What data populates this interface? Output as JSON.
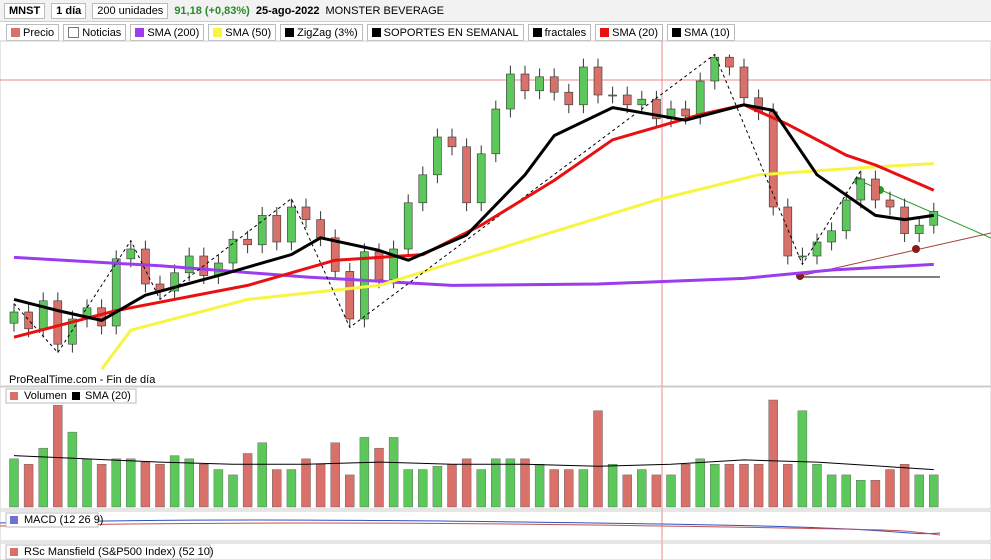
{
  "toolbar": {
    "symbol": "MNST",
    "period": "1 día",
    "units": "200 unidades",
    "price": "91,18 (+0,83%)",
    "date": "25-ago-2022",
    "name": "MONSTER BEVERAGE"
  },
  "chart_data": [
    {
      "type": "candlestick",
      "price_label": "Precio",
      "news_label": "Noticias",
      "footer": "ProRealTime.com - Fin de día",
      "ylim": [
        79.5,
        102.5
      ],
      "up_color": "#5cc85c",
      "down_color": "#d9706a",
      "open": [
        83.2,
        84.0,
        82.8,
        84.8,
        81.7,
        83.5,
        84.3,
        83.0,
        87.8,
        88.5,
        86.0,
        85.5,
        86.8,
        88.0,
        86.6,
        87.5,
        89.2,
        88.8,
        90.9,
        89.0,
        91.5,
        90.6,
        89.3,
        86.9,
        83.5,
        88.3,
        86.3,
        88.5,
        91.8,
        93.8,
        96.5,
        95.8,
        91.8,
        95.3,
        98.5,
        101.0,
        99.8,
        100.8,
        99.7,
        98.8,
        101.5,
        99.5,
        99.5,
        98.8,
        99.2,
        97.8,
        98.5,
        98.0,
        100.5,
        102.2,
        101.5,
        99.3,
        98.3,
        91.5,
        88.0,
        88.0,
        89.0,
        89.8,
        92.0,
        93.5,
        92.0,
        91.5,
        89.6,
        90.2
      ],
      "high": [
        84.6,
        84.6,
        85.4,
        85.4,
        84.1,
        84.9,
        84.9,
        88.4,
        89.1,
        89.1,
        86.6,
        87.4,
        88.6,
        88.6,
        88.1,
        89.8,
        89.8,
        91.5,
        91.5,
        92.1,
        92.1,
        91.2,
        89.9,
        87.5,
        88.9,
        88.9,
        89.1,
        92.4,
        94.4,
        97.1,
        97.1,
        96.4,
        95.9,
        99.1,
        101.6,
        101.6,
        101.4,
        101.4,
        100.3,
        102.1,
        102.1,
        100.1,
        100.1,
        99.8,
        99.8,
        99.1,
        99.1,
        101.1,
        102.4,
        102.4,
        102.1,
        99.9,
        98.9,
        92.1,
        88.6,
        89.6,
        90.4,
        92.6,
        94.1,
        94.1,
        92.6,
        92.1,
        90.8,
        91.8
      ],
      "low": [
        82.6,
        82.2,
        82.2,
        81.1,
        81.1,
        82.9,
        82.4,
        82.4,
        87.2,
        85.4,
        84.9,
        84.9,
        86.2,
        86.0,
        86.0,
        86.9,
        88.2,
        88.2,
        88.4,
        88.4,
        90.0,
        88.7,
        86.3,
        82.9,
        82.9,
        85.7,
        85.7,
        87.9,
        91.2,
        93.2,
        95.2,
        91.2,
        91.2,
        94.7,
        97.9,
        99.2,
        99.2,
        99.1,
        98.2,
        98.2,
        98.9,
        98.9,
        98.2,
        98.2,
        97.2,
        97.2,
        97.4,
        97.4,
        99.9,
        100.9,
        98.7,
        97.7,
        90.9,
        87.4,
        87.4,
        87.4,
        88.4,
        89.2,
        91.4,
        91.4,
        90.9,
        89.0,
        89.0,
        89.6
      ],
      "close": [
        84.0,
        82.8,
        84.8,
        81.7,
        83.5,
        84.3,
        83.0,
        87.8,
        88.5,
        86.0,
        85.5,
        86.8,
        88.0,
        86.6,
        87.5,
        89.2,
        88.8,
        90.9,
        89.0,
        91.5,
        90.6,
        89.3,
        86.9,
        83.5,
        88.3,
        86.3,
        88.5,
        91.8,
        93.8,
        96.5,
        95.8,
        91.8,
        95.3,
        98.5,
        101.0,
        99.8,
        100.8,
        99.7,
        98.8,
        101.5,
        99.5,
        99.5,
        98.8,
        99.2,
        97.8,
        98.5,
        98.0,
        100.5,
        102.2,
        101.5,
        99.3,
        98.3,
        91.5,
        88.0,
        88.0,
        89.0,
        89.8,
        92.0,
        93.5,
        92.0,
        91.5,
        89.6,
        90.2,
        91.18
      ],
      "series": [
        {
          "name": "SMA (200)",
          "color": "#9b3cf0",
          "width": 3,
          "x": [
            0,
            10,
            20,
            30,
            40,
            50,
            56,
            63
          ],
          "values": [
            87.9,
            87.3,
            86.5,
            85.9,
            86.0,
            86.4,
            87.0,
            87.4
          ]
        },
        {
          "name": "SMA (50)",
          "color": "#f5f542",
          "width": 3,
          "x": [
            6,
            8,
            16,
            25,
            35,
            44,
            51,
            58,
            63
          ],
          "values": [
            79.9,
            82.7,
            84.9,
            85.9,
            89.1,
            92.0,
            93.8,
            94.3,
            94.6
          ]
        },
        {
          "name": "ZigZag (3%)",
          "color": "#000000",
          "width": 1,
          "dash": true,
          "x": [
            0,
            3,
            8,
            10,
            19,
            23,
            48,
            54,
            58
          ],
          "values": [
            84.6,
            81.1,
            89.1,
            84.9,
            92.1,
            82.9,
            102.4,
            87.4,
            94.1
          ]
        },
        {
          "name": "SOPORTES EN SEMANAL",
          "color": "#000000"
        },
        {
          "name": "fractales",
          "color": "#000000"
        },
        {
          "name": "SMA (20)",
          "color": "#e81010",
          "width": 3,
          "x": [
            0,
            7,
            16,
            22,
            28,
            32,
            37,
            41,
            47,
            50,
            53,
            57,
            59,
            63
          ],
          "values": [
            82.2,
            84.1,
            85.9,
            87.7,
            88.1,
            90.2,
            93.4,
            96.3,
            98.1,
            98.8,
            97.4,
            95.2,
            94.5,
            92.7
          ]
        },
        {
          "name": "SMA (10)",
          "color": "#000000",
          "width": 3,
          "x": [
            0,
            3,
            6,
            9,
            14,
            19,
            21,
            25,
            27,
            31,
            35,
            37,
            41,
            46,
            50,
            52,
            55,
            59,
            61,
            63
          ],
          "values": [
            84.9,
            84.1,
            83.4,
            85.2,
            86.6,
            88.1,
            89.3,
            88.4,
            87.7,
            89.5,
            93.8,
            96.6,
            98.6,
            97.7,
            98.8,
            98.4,
            93.8,
            90.9,
            90.6,
            90.9
          ]
        }
      ]
    },
    {
      "type": "bar",
      "title": "Volumen",
      "ylim": [
        0,
        100
      ],
      "values": [
        45,
        40,
        55,
        95,
        70,
        45,
        40,
        45,
        45,
        42,
        40,
        48,
        45,
        40,
        35,
        30,
        50,
        60,
        35,
        35,
        45,
        40,
        60,
        30,
        65,
        55,
        65,
        35,
        35,
        38,
        40,
        45,
        35,
        45,
        45,
        45,
        40,
        35,
        35,
        35,
        90,
        40,
        30,
        35,
        30,
        30,
        40,
        45,
        40,
        40,
        40,
        40,
        100,
        40,
        90,
        40,
        30,
        30,
        25,
        25,
        35,
        40,
        30,
        30
      ],
      "series": [
        {
          "name": "SMA (20)",
          "color": "#000000",
          "x": [
            0,
            5,
            10,
            15,
            20,
            25,
            30,
            35,
            40,
            45,
            50,
            55,
            63
          ],
          "values": [
            48,
            45,
            42,
            40,
            40,
            42,
            40,
            40,
            38,
            40,
            44,
            42,
            35
          ]
        }
      ]
    },
    {
      "type": "macd",
      "title": "MACD (12 26 9)"
    },
    {
      "type": "rsc",
      "title": "RSc Mansfield (S&P500 Index) (52 10)"
    }
  ]
}
